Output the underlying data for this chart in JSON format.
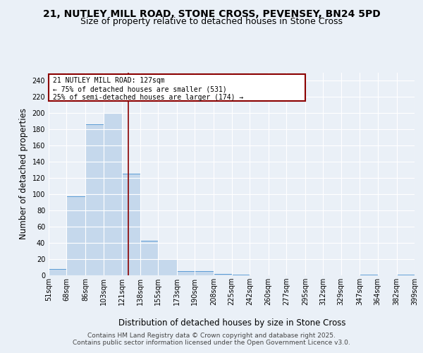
{
  "title_line1": "21, NUTLEY MILL ROAD, STONE CROSS, PEVENSEY, BN24 5PD",
  "title_line2": "Size of property relative to detached houses in Stone Cross",
  "xlabel": "Distribution of detached houses by size in Stone Cross",
  "ylabel": "Number of detached properties",
  "bin_edges": [
    51,
    68,
    86,
    103,
    121,
    138,
    155,
    173,
    190,
    208,
    225,
    242,
    260,
    277,
    295,
    312,
    329,
    347,
    364,
    382,
    399
  ],
  "bar_heights": [
    8,
    97,
    186,
    200,
    125,
    43,
    20,
    5,
    5,
    2,
    1,
    0,
    0,
    0,
    0,
    0,
    0,
    1,
    0,
    1
  ],
  "bar_color": "#c5d8ec",
  "bar_edge_color": "#5b9bd5",
  "property_size": 127,
  "vline_color": "#8b0000",
  "annotation_box_color": "#8b0000",
  "annotation_text_line1": "21 NUTLEY MILL ROAD: 127sqm",
  "annotation_text_line2": "← 75% of detached houses are smaller (531)",
  "annotation_text_line3": "25% of semi-detached houses are larger (174) →",
  "ylim": [
    0,
    250
  ],
  "yticks": [
    0,
    20,
    40,
    60,
    80,
    100,
    120,
    140,
    160,
    180,
    200,
    220,
    240
  ],
  "footer_line1": "Contains HM Land Registry data © Crown copyright and database right 2025.",
  "footer_line2": "Contains public sector information licensed under the Open Government Licence v3.0.",
  "bg_color": "#eaf0f7",
  "plot_bg_color": "#eaf0f7",
  "grid_color": "#ffffff",
  "title_fontsize": 10,
  "subtitle_fontsize": 9,
  "tick_fontsize": 7,
  "label_fontsize": 8.5,
  "footer_fontsize": 6.5
}
